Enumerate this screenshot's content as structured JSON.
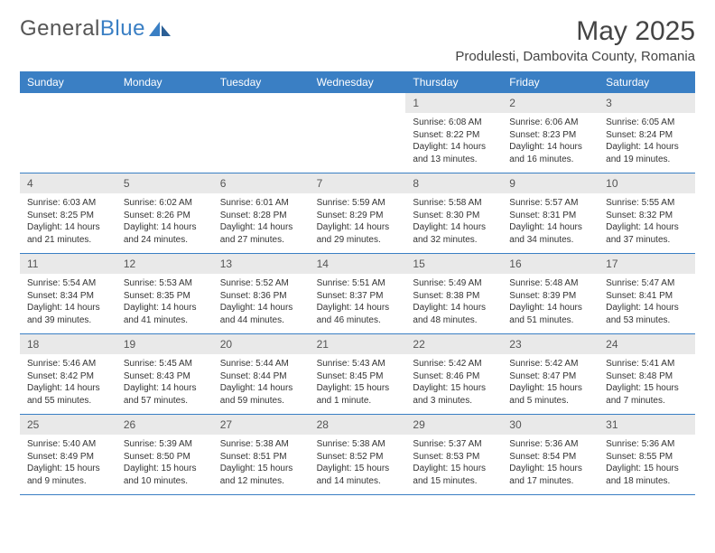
{
  "logo": {
    "text1": "General",
    "text2": "Blue"
  },
  "title": "May 2025",
  "location": "Produlesti, Dambovita County, Romania",
  "accent_color": "#3a7fc4",
  "daynum_bg": "#e9e9e9",
  "weekdays": [
    "Sunday",
    "Monday",
    "Tuesday",
    "Wednesday",
    "Thursday",
    "Friday",
    "Saturday"
  ],
  "weeks": [
    [
      {
        "n": "",
        "sr": "",
        "ss": "",
        "dl": ""
      },
      {
        "n": "",
        "sr": "",
        "ss": "",
        "dl": ""
      },
      {
        "n": "",
        "sr": "",
        "ss": "",
        "dl": ""
      },
      {
        "n": "",
        "sr": "",
        "ss": "",
        "dl": ""
      },
      {
        "n": "1",
        "sr": "Sunrise: 6:08 AM",
        "ss": "Sunset: 8:22 PM",
        "dl": "Daylight: 14 hours and 13 minutes."
      },
      {
        "n": "2",
        "sr": "Sunrise: 6:06 AM",
        "ss": "Sunset: 8:23 PM",
        "dl": "Daylight: 14 hours and 16 minutes."
      },
      {
        "n": "3",
        "sr": "Sunrise: 6:05 AM",
        "ss": "Sunset: 8:24 PM",
        "dl": "Daylight: 14 hours and 19 minutes."
      }
    ],
    [
      {
        "n": "4",
        "sr": "Sunrise: 6:03 AM",
        "ss": "Sunset: 8:25 PM",
        "dl": "Daylight: 14 hours and 21 minutes."
      },
      {
        "n": "5",
        "sr": "Sunrise: 6:02 AM",
        "ss": "Sunset: 8:26 PM",
        "dl": "Daylight: 14 hours and 24 minutes."
      },
      {
        "n": "6",
        "sr": "Sunrise: 6:01 AM",
        "ss": "Sunset: 8:28 PM",
        "dl": "Daylight: 14 hours and 27 minutes."
      },
      {
        "n": "7",
        "sr": "Sunrise: 5:59 AM",
        "ss": "Sunset: 8:29 PM",
        "dl": "Daylight: 14 hours and 29 minutes."
      },
      {
        "n": "8",
        "sr": "Sunrise: 5:58 AM",
        "ss": "Sunset: 8:30 PM",
        "dl": "Daylight: 14 hours and 32 minutes."
      },
      {
        "n": "9",
        "sr": "Sunrise: 5:57 AM",
        "ss": "Sunset: 8:31 PM",
        "dl": "Daylight: 14 hours and 34 minutes."
      },
      {
        "n": "10",
        "sr": "Sunrise: 5:55 AM",
        "ss": "Sunset: 8:32 PM",
        "dl": "Daylight: 14 hours and 37 minutes."
      }
    ],
    [
      {
        "n": "11",
        "sr": "Sunrise: 5:54 AM",
        "ss": "Sunset: 8:34 PM",
        "dl": "Daylight: 14 hours and 39 minutes."
      },
      {
        "n": "12",
        "sr": "Sunrise: 5:53 AM",
        "ss": "Sunset: 8:35 PM",
        "dl": "Daylight: 14 hours and 41 minutes."
      },
      {
        "n": "13",
        "sr": "Sunrise: 5:52 AM",
        "ss": "Sunset: 8:36 PM",
        "dl": "Daylight: 14 hours and 44 minutes."
      },
      {
        "n": "14",
        "sr": "Sunrise: 5:51 AM",
        "ss": "Sunset: 8:37 PM",
        "dl": "Daylight: 14 hours and 46 minutes."
      },
      {
        "n": "15",
        "sr": "Sunrise: 5:49 AM",
        "ss": "Sunset: 8:38 PM",
        "dl": "Daylight: 14 hours and 48 minutes."
      },
      {
        "n": "16",
        "sr": "Sunrise: 5:48 AM",
        "ss": "Sunset: 8:39 PM",
        "dl": "Daylight: 14 hours and 51 minutes."
      },
      {
        "n": "17",
        "sr": "Sunrise: 5:47 AM",
        "ss": "Sunset: 8:41 PM",
        "dl": "Daylight: 14 hours and 53 minutes."
      }
    ],
    [
      {
        "n": "18",
        "sr": "Sunrise: 5:46 AM",
        "ss": "Sunset: 8:42 PM",
        "dl": "Daylight: 14 hours and 55 minutes."
      },
      {
        "n": "19",
        "sr": "Sunrise: 5:45 AM",
        "ss": "Sunset: 8:43 PM",
        "dl": "Daylight: 14 hours and 57 minutes."
      },
      {
        "n": "20",
        "sr": "Sunrise: 5:44 AM",
        "ss": "Sunset: 8:44 PM",
        "dl": "Daylight: 14 hours and 59 minutes."
      },
      {
        "n": "21",
        "sr": "Sunrise: 5:43 AM",
        "ss": "Sunset: 8:45 PM",
        "dl": "Daylight: 15 hours and 1 minute."
      },
      {
        "n": "22",
        "sr": "Sunrise: 5:42 AM",
        "ss": "Sunset: 8:46 PM",
        "dl": "Daylight: 15 hours and 3 minutes."
      },
      {
        "n": "23",
        "sr": "Sunrise: 5:42 AM",
        "ss": "Sunset: 8:47 PM",
        "dl": "Daylight: 15 hours and 5 minutes."
      },
      {
        "n": "24",
        "sr": "Sunrise: 5:41 AM",
        "ss": "Sunset: 8:48 PM",
        "dl": "Daylight: 15 hours and 7 minutes."
      }
    ],
    [
      {
        "n": "25",
        "sr": "Sunrise: 5:40 AM",
        "ss": "Sunset: 8:49 PM",
        "dl": "Daylight: 15 hours and 9 minutes."
      },
      {
        "n": "26",
        "sr": "Sunrise: 5:39 AM",
        "ss": "Sunset: 8:50 PM",
        "dl": "Daylight: 15 hours and 10 minutes."
      },
      {
        "n": "27",
        "sr": "Sunrise: 5:38 AM",
        "ss": "Sunset: 8:51 PM",
        "dl": "Daylight: 15 hours and 12 minutes."
      },
      {
        "n": "28",
        "sr": "Sunrise: 5:38 AM",
        "ss": "Sunset: 8:52 PM",
        "dl": "Daylight: 15 hours and 14 minutes."
      },
      {
        "n": "29",
        "sr": "Sunrise: 5:37 AM",
        "ss": "Sunset: 8:53 PM",
        "dl": "Daylight: 15 hours and 15 minutes."
      },
      {
        "n": "30",
        "sr": "Sunrise: 5:36 AM",
        "ss": "Sunset: 8:54 PM",
        "dl": "Daylight: 15 hours and 17 minutes."
      },
      {
        "n": "31",
        "sr": "Sunrise: 5:36 AM",
        "ss": "Sunset: 8:55 PM",
        "dl": "Daylight: 15 hours and 18 minutes."
      }
    ]
  ]
}
